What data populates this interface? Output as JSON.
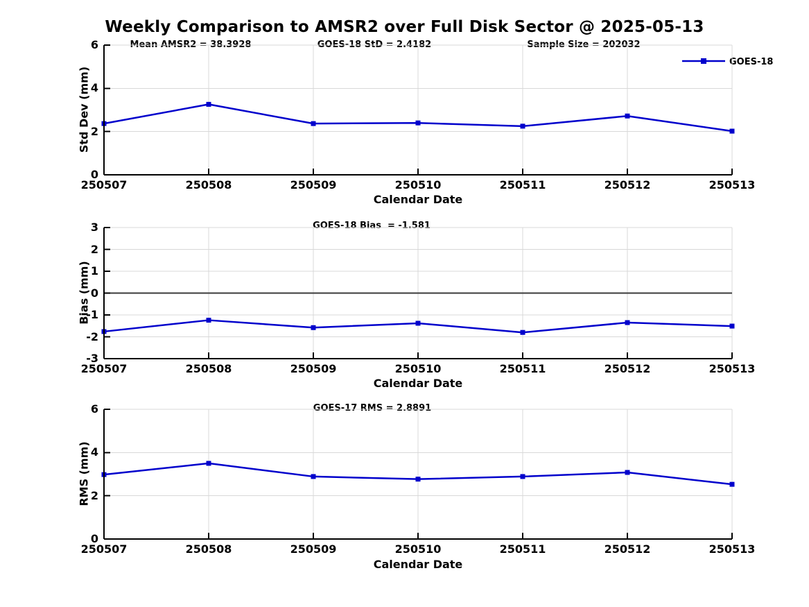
{
  "title": "Weekly Comparison to AMSR2 over Full Disk Sector @ 2025-05-13",
  "colors": {
    "line": "#0000cc",
    "grid": "#d8d8d8",
    "axis": "#000000",
    "zero_line": "#3a3a3a",
    "background": "#ffffff"
  },
  "chart_data": [
    {
      "type": "line",
      "name": "std-dev",
      "annotations": [
        "Mean AMSR2 = 38.3928",
        "GOES-18 StD = 2.4182",
        "Sample Size = 202032"
      ],
      "categories": [
        "250507",
        "250508",
        "250509",
        "250510",
        "250511",
        "250512",
        "250513"
      ],
      "series": [
        {
          "name": "GOES-18",
          "values": [
            2.37,
            3.26,
            2.37,
            2.4,
            2.25,
            2.72,
            2.02
          ]
        }
      ],
      "xlabel": "Calendar Date",
      "ylabel": "Std Dev (mm)",
      "ylim": [
        0,
        6
      ],
      "yticks": [
        0,
        2,
        4,
        6
      ],
      "grid": true,
      "zero_line": false,
      "legend": {
        "label": "GOES-18",
        "position": "top-right"
      }
    },
    {
      "type": "line",
      "name": "bias",
      "annotations": [
        "GOES-18 Bias  = -1.581"
      ],
      "categories": [
        "250507",
        "250508",
        "250509",
        "250510",
        "250511",
        "250512",
        "250513"
      ],
      "series": [
        {
          "name": "GOES-18",
          "values": [
            -1.76,
            -1.24,
            -1.58,
            -1.38,
            -1.8,
            -1.35,
            -1.51
          ]
        }
      ],
      "xlabel": "Calendar Date",
      "ylabel": "Bias (mm)",
      "ylim": [
        -3,
        3
      ],
      "yticks": [
        -3,
        -2,
        -1,
        0,
        1,
        2,
        3
      ],
      "grid": true,
      "zero_line": true
    },
    {
      "type": "line",
      "name": "rms",
      "annotations": [
        "GOES-17 RMS = 2.8891"
      ],
      "categories": [
        "250507",
        "250508",
        "250509",
        "250510",
        "250511",
        "250512",
        "250513"
      ],
      "series": [
        {
          "name": "GOES-18",
          "values": [
            2.98,
            3.5,
            2.89,
            2.77,
            2.89,
            3.08,
            2.53
          ]
        }
      ],
      "xlabel": "Calendar Date",
      "ylabel": "RMS (mm)",
      "ylim": [
        0,
        6
      ],
      "yticks": [
        0,
        2,
        4,
        6
      ],
      "grid": true,
      "zero_line": false
    }
  ]
}
